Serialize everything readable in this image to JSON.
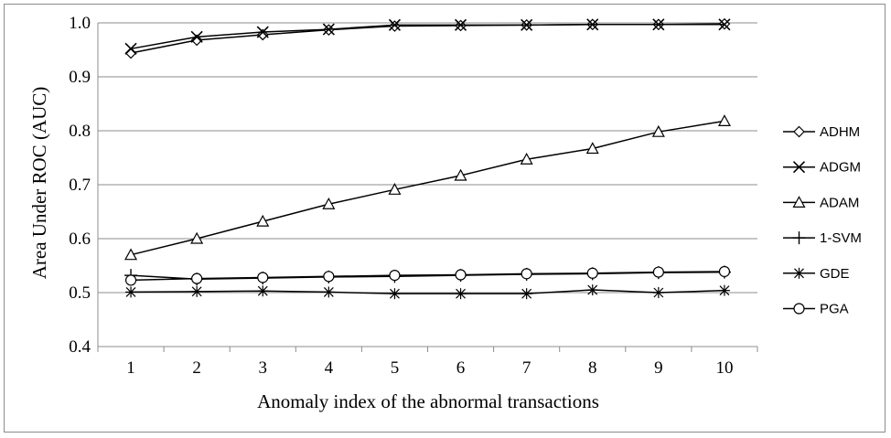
{
  "chart_data": {
    "type": "line",
    "title": "",
    "xlabel": "Anomaly index of the abnormal transactions",
    "ylabel": "Area Under ROC (AUC)",
    "categories": [
      "1",
      "2",
      "3",
      "4",
      "5",
      "6",
      "7",
      "8",
      "9",
      "10"
    ],
    "ylim": [
      0.4,
      1.0
    ],
    "yticks": [
      "0.4",
      "0.5",
      "0.6",
      "0.7",
      "0.8",
      "0.9",
      "1.0"
    ],
    "grid": "horizontal",
    "legend_position": "right",
    "series": [
      {
        "name": "ADHM",
        "marker": "diamond",
        "values": [
          0.944,
          0.968,
          0.978,
          0.987,
          0.994,
          0.995,
          0.996,
          0.997,
          0.997,
          0.998
        ]
      },
      {
        "name": "ADGM",
        "marker": "x",
        "values": [
          0.952,
          0.974,
          0.983,
          0.988,
          0.996,
          0.996,
          0.996,
          0.997,
          0.997,
          0.997
        ]
      },
      {
        "name": "ADAM",
        "marker": "triangle",
        "values": [
          0.57,
          0.6,
          0.632,
          0.664,
          0.691,
          0.717,
          0.747,
          0.767,
          0.798,
          0.818
        ]
      },
      {
        "name": "1-SVM",
        "marker": "plus",
        "values": [
          0.532,
          0.525,
          0.527,
          0.529,
          0.53,
          0.532,
          0.534,
          0.535,
          0.537,
          0.538
        ]
      },
      {
        "name": "GDE",
        "marker": "asterisk",
        "values": [
          0.501,
          0.502,
          0.503,
          0.501,
          0.498,
          0.498,
          0.498,
          0.505,
          0.5,
          0.504
        ]
      },
      {
        "name": "PGA",
        "marker": "circle",
        "values": [
          0.523,
          0.526,
          0.528,
          0.53,
          0.532,
          0.533,
          0.535,
          0.536,
          0.538,
          0.539
        ]
      }
    ]
  }
}
